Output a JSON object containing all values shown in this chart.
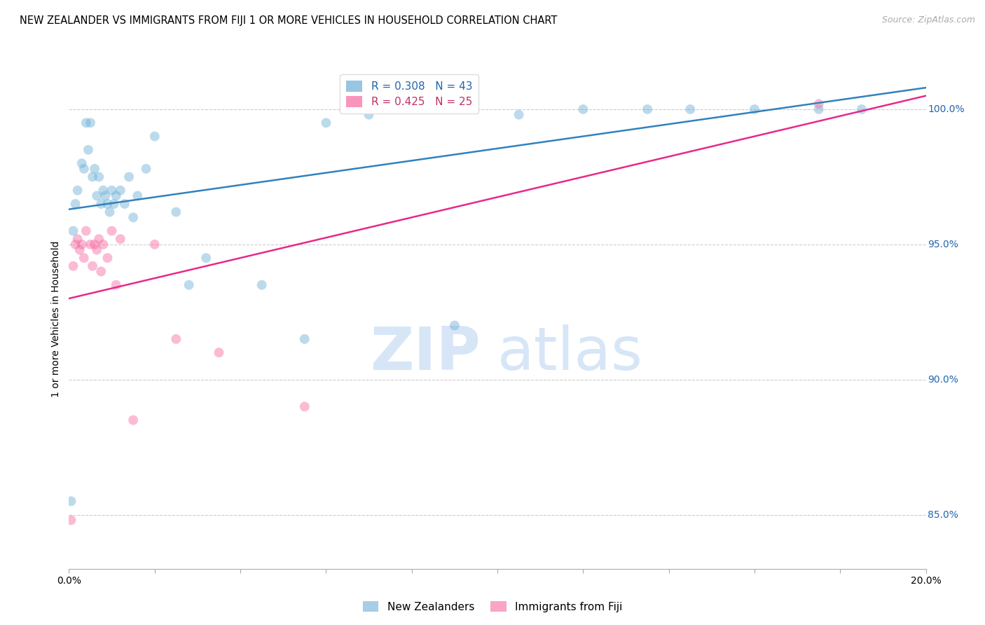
{
  "title": "NEW ZEALANDER VS IMMIGRANTS FROM FIJI 1 OR MORE VEHICLES IN HOUSEHOLD CORRELATION CHART",
  "source": "Source: ZipAtlas.com",
  "ylabel": "1 or more Vehicles in Household",
  "ytick_labels": [
    "85.0%",
    "90.0%",
    "95.0%",
    "100.0%"
  ],
  "ytick_values": [
    85.0,
    90.0,
    95.0,
    100.0
  ],
  "xlim": [
    0.0,
    20.0
  ],
  "ylim": [
    83.0,
    101.5
  ],
  "legend_entries": [
    {
      "label": "R = 0.308   N = 43",
      "color": "#6baed6"
    },
    {
      "label": "R = 0.425   N = 25",
      "color": "#f768a1"
    }
  ],
  "watermark_zip": "ZIP",
  "watermark_atlas": "atlas",
  "nz_scatter_x": [
    0.05,
    0.1,
    0.15,
    0.2,
    0.3,
    0.35,
    0.4,
    0.45,
    0.5,
    0.55,
    0.6,
    0.65,
    0.7,
    0.75,
    0.8,
    0.85,
    0.9,
    0.95,
    1.0,
    1.05,
    1.1,
    1.2,
    1.3,
    1.4,
    1.5,
    1.6,
    1.8,
    2.0,
    2.5,
    2.8,
    3.2,
    4.5,
    5.5,
    6.0,
    7.0,
    9.0,
    10.5,
    12.0,
    13.5,
    14.5,
    16.0,
    17.5,
    18.5
  ],
  "nz_scatter_y": [
    85.5,
    95.5,
    96.5,
    97.0,
    98.0,
    97.8,
    99.5,
    98.5,
    99.5,
    97.5,
    97.8,
    96.8,
    97.5,
    96.5,
    97.0,
    96.8,
    96.5,
    96.2,
    97.0,
    96.5,
    96.8,
    97.0,
    96.5,
    97.5,
    96.0,
    96.8,
    97.8,
    99.0,
    96.2,
    93.5,
    94.5,
    93.5,
    91.5,
    99.5,
    99.8,
    92.0,
    99.8,
    100.0,
    100.0,
    100.0,
    100.0,
    100.0,
    100.0
  ],
  "fiji_scatter_x": [
    0.05,
    0.1,
    0.15,
    0.2,
    0.25,
    0.3,
    0.35,
    0.4,
    0.5,
    0.55,
    0.6,
    0.65,
    0.7,
    0.75,
    0.8,
    0.9,
    1.0,
    1.1,
    1.2,
    1.5,
    2.0,
    2.5,
    3.5,
    5.5,
    17.5
  ],
  "fiji_scatter_y": [
    84.8,
    94.2,
    95.0,
    95.2,
    94.8,
    95.0,
    94.5,
    95.5,
    95.0,
    94.2,
    95.0,
    94.8,
    95.2,
    94.0,
    95.0,
    94.5,
    95.5,
    93.5,
    95.2,
    88.5,
    95.0,
    91.5,
    91.0,
    89.0,
    100.2
  ],
  "nz_line_x": [
    0.0,
    20.0
  ],
  "nz_line_y": [
    96.3,
    100.8
  ],
  "fiji_line_x": [
    0.0,
    20.0
  ],
  "fiji_line_y": [
    93.0,
    100.5
  ],
  "nz_color": "#6baed6",
  "fiji_color": "#f768a1",
  "nz_color_line": "#3182bd",
  "fiji_color_line": "#e7298a",
  "bg_color": "#ffffff",
  "grid_color": "#cccccc",
  "title_fontsize": 10.5,
  "source_fontsize": 9,
  "label_fontsize": 10,
  "scatter_size": 100,
  "scatter_alpha": 0.45,
  "line_width": 1.8
}
